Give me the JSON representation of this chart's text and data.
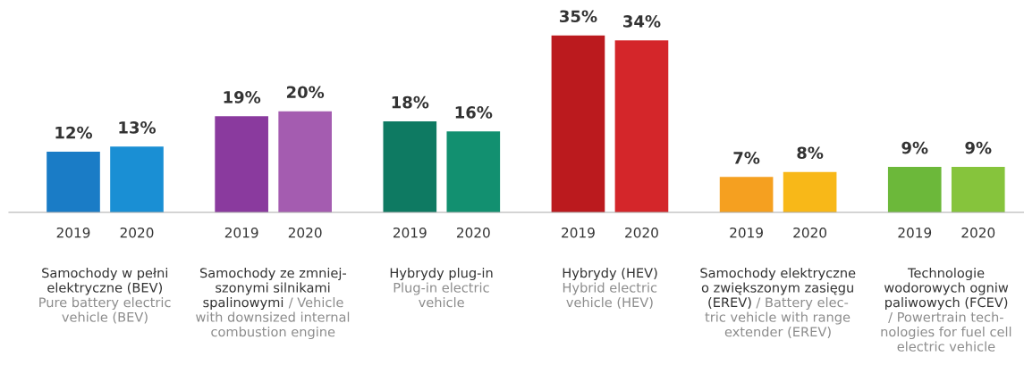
{
  "chart_data": {
    "type": "bar",
    "categories": [
      "2019",
      "2020",
      "2019",
      "2020",
      "2019",
      "2020",
      "2019",
      "2020",
      "2019",
      "2020",
      "2019",
      "2020"
    ],
    "values": [
      12,
      13,
      19,
      20,
      18,
      16,
      35,
      34,
      7,
      8,
      9,
      9
    ],
    "colors": [
      "#1a7cc6",
      "#1a8fd4",
      "#8a3a9e",
      "#a45cb0",
      "#0e7a62",
      "#129070",
      "#bb1a1e",
      "#d4262a",
      "#f5a020",
      "#f8b818",
      "#6cb83a",
      "#86c43c"
    ],
    "value_labels": [
      "12%",
      "13%",
      "19%",
      "20%",
      "18%",
      "16%",
      "35%",
      "34%",
      "7%",
      "8%",
      "9%",
      "9%"
    ],
    "annotations": [
      "Samochody w pełni\nelektryczne (BEV)",
      "Pure battery electric\nvehicle (BEV)",
      "Samochody ze zmniej-\nszonymi silnikami\nspalinowymi",
      "/ Vehicle\nwith downsized internal\ncombustion engine",
      "Hybrydy plug-in",
      "Plug-in electric\nvehicle",
      "Hybrydy (HEV)",
      "Hybrid electric\nvehicle (HEV)",
      "Samochody elektryczne\no zwiększonym zasięgu\n(EREV)",
      "/ Battery elec-\ntric vehicle with range\nextender (EREV)",
      "Technologie\nwodorowych ogniw\npaliwowych (FCEV)",
      "/ Powertrain tech-\nnologies for fuel cell\nelectric vehicle"
    ]
  }
}
